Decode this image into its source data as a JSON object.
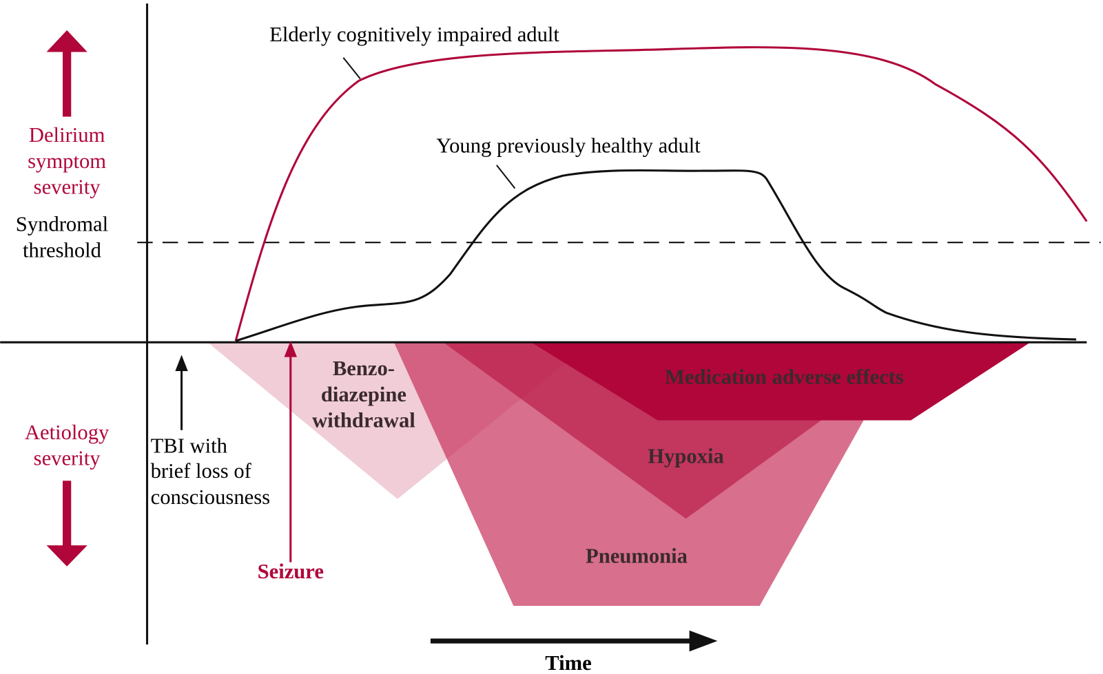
{
  "axes": {
    "y_upper_label": [
      "Delirium",
      "symptom",
      "severity"
    ],
    "threshold_label": [
      "Syndromal",
      "threshold"
    ],
    "y_lower_label": [
      "Aetiology",
      "severity"
    ],
    "x_label": "Time"
  },
  "curves": {
    "elderly": "Elderly cognitively impaired adult",
    "young": "Young previously healthy adult"
  },
  "events": {
    "tbi": [
      "TBI with",
      "brief loss of",
      "consciousness"
    ],
    "seizure": "Seizure"
  },
  "aetiologies": {
    "benzo": [
      "Benzo-",
      "diazepine",
      "withdrawal"
    ],
    "medication": "Medication adverse effects",
    "hypoxia": "Hypoxia",
    "pneumonia": "Pneumonia"
  }
}
